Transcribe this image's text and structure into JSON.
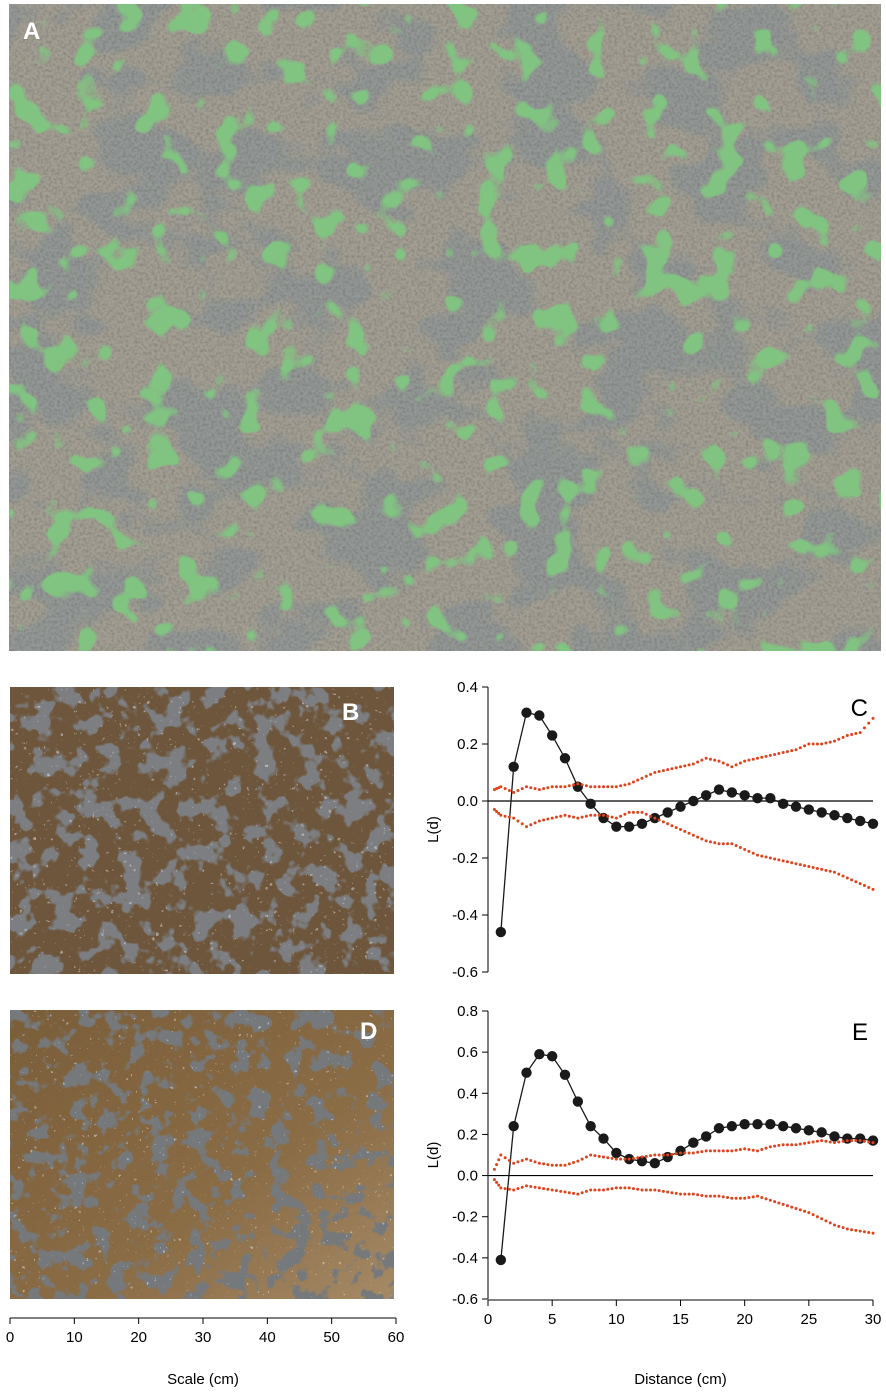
{
  "panels": {
    "a": {
      "letter": "A",
      "description": "aerial photograph of a mussel bed"
    },
    "b": {
      "letter": "B",
      "description": "close-up photograph of mussel clumps"
    },
    "d": {
      "letter": "D",
      "description": "close-up photograph of mussel clumps"
    }
  },
  "scale_axis": {
    "label": "Scale (cm)",
    "range": [
      0,
      60
    ],
    "ticks": [
      "0",
      "10",
      "20",
      "30",
      "40",
      "50",
      "60"
    ]
  },
  "colors": {
    "observed": "#1a1a1a",
    "envelope": "#e0421a",
    "axis": "#000000"
  },
  "chart_data": [
    {
      "type": "line",
      "panel_label": "C",
      "xlabel": "",
      "ylabel": "L(d)",
      "xlim": [
        0,
        30
      ],
      "ylim": [
        -0.6,
        0.4
      ],
      "yticks": [
        -0.6,
        -0.4,
        -0.2,
        0.0,
        0.2,
        0.4
      ],
      "ytick_labels": [
        "-0.6",
        "-0.4",
        "-0.2",
        "0.0",
        "0.2",
        "0.4"
      ],
      "xticks": [
        0,
        5,
        10,
        15,
        20,
        25,
        30
      ],
      "xtick_labels": [],
      "reference_line": 0,
      "series": [
        {
          "style": "observed",
          "x": [
            1,
            2,
            3,
            4,
            5,
            6,
            7,
            8,
            9,
            10,
            11,
            12,
            13,
            14,
            15,
            16,
            17,
            18,
            19,
            20,
            21,
            22,
            23,
            24,
            25,
            26,
            27,
            28,
            29,
            30
          ],
          "y": [
            -0.46,
            0.12,
            0.31,
            0.3,
            0.23,
            0.15,
            0.05,
            -0.01,
            -0.06,
            -0.09,
            -0.09,
            -0.08,
            -0.06,
            -0.04,
            -0.02,
            0.0,
            0.02,
            0.04,
            0.03,
            0.02,
            0.01,
            0.01,
            -0.01,
            -0.02,
            -0.03,
            -0.04,
            -0.05,
            -0.06,
            -0.07,
            -0.08
          ]
        },
        {
          "style": "envelope-upper",
          "x": [
            0.5,
            1,
            2,
            3,
            4,
            5,
            6,
            7,
            8,
            9,
            10,
            11,
            12,
            13,
            14,
            15,
            16,
            17,
            18,
            19,
            20,
            21,
            22,
            23,
            24,
            25,
            26,
            27,
            28,
            29,
            30
          ],
          "y": [
            0.04,
            0.05,
            0.03,
            0.05,
            0.04,
            0.05,
            0.05,
            0.06,
            0.05,
            0.05,
            0.05,
            0.06,
            0.08,
            0.1,
            0.11,
            0.12,
            0.13,
            0.15,
            0.14,
            0.12,
            0.14,
            0.15,
            0.16,
            0.17,
            0.18,
            0.2,
            0.2,
            0.21,
            0.23,
            0.24,
            0.29
          ]
        },
        {
          "style": "envelope-lower",
          "x": [
            0.5,
            1,
            2,
            3,
            4,
            5,
            6,
            7,
            8,
            9,
            10,
            11,
            12,
            13,
            14,
            15,
            16,
            17,
            18,
            19,
            20,
            21,
            22,
            23,
            24,
            25,
            26,
            27,
            28,
            29,
            30
          ],
          "y": [
            -0.03,
            -0.05,
            -0.06,
            -0.09,
            -0.07,
            -0.06,
            -0.05,
            -0.06,
            -0.05,
            -0.05,
            -0.06,
            -0.04,
            -0.04,
            -0.06,
            -0.08,
            -0.1,
            -0.12,
            -0.14,
            -0.15,
            -0.15,
            -0.17,
            -0.19,
            -0.2,
            -0.21,
            -0.22,
            -0.23,
            -0.24,
            -0.25,
            -0.27,
            -0.29,
            -0.31
          ]
        }
      ]
    },
    {
      "type": "line",
      "panel_label": "E",
      "xlabel": "Distance (cm)",
      "ylabel": "L(d)",
      "xlim": [
        0,
        30
      ],
      "ylim": [
        -0.6,
        0.8
      ],
      "yticks": [
        -0.6,
        -0.4,
        -0.2,
        0.0,
        0.2,
        0.4,
        0.6,
        0.8
      ],
      "ytick_labels": [
        "-0.6",
        "-0.4",
        "-0.2",
        "0.0",
        "0.2",
        "0.4",
        "0.6",
        "0.8"
      ],
      "xticks": [
        0,
        5,
        10,
        15,
        20,
        25,
        30
      ],
      "xtick_labels": [
        "0",
        "5",
        "10",
        "15",
        "20",
        "25",
        "30"
      ],
      "reference_line": 0,
      "series": [
        {
          "style": "observed",
          "x": [
            1,
            2,
            3,
            4,
            5,
            6,
            7,
            8,
            9,
            10,
            11,
            12,
            13,
            14,
            15,
            16,
            17,
            18,
            19,
            20,
            21,
            22,
            23,
            24,
            25,
            26,
            27,
            28,
            29,
            30
          ],
          "y": [
            -0.41,
            0.24,
            0.5,
            0.59,
            0.58,
            0.49,
            0.36,
            0.24,
            0.18,
            0.11,
            0.08,
            0.07,
            0.06,
            0.09,
            0.12,
            0.16,
            0.19,
            0.23,
            0.24,
            0.25,
            0.25,
            0.25,
            0.24,
            0.23,
            0.22,
            0.21,
            0.19,
            0.18,
            0.18,
            0.17
          ]
        },
        {
          "style": "envelope-upper",
          "x": [
            0.5,
            1,
            2,
            3,
            4,
            5,
            6,
            7,
            8,
            9,
            10,
            11,
            12,
            13,
            14,
            15,
            16,
            17,
            18,
            19,
            20,
            21,
            22,
            23,
            24,
            25,
            26,
            27,
            28,
            29,
            30
          ],
          "y": [
            0.03,
            0.1,
            0.06,
            0.08,
            0.06,
            0.05,
            0.05,
            0.07,
            0.1,
            0.09,
            0.08,
            0.08,
            0.09,
            0.1,
            0.1,
            0.11,
            0.11,
            0.12,
            0.12,
            0.12,
            0.13,
            0.12,
            0.14,
            0.15,
            0.15,
            0.16,
            0.17,
            0.16,
            0.17,
            0.17,
            0.16
          ]
        },
        {
          "style": "envelope-lower",
          "x": [
            0.5,
            1,
            2,
            3,
            4,
            5,
            6,
            7,
            8,
            9,
            10,
            11,
            12,
            13,
            14,
            15,
            16,
            17,
            18,
            19,
            20,
            21,
            22,
            23,
            24,
            25,
            26,
            27,
            28,
            29,
            30
          ],
          "y": [
            -0.02,
            -0.06,
            -0.07,
            -0.05,
            -0.06,
            -0.07,
            -0.08,
            -0.09,
            -0.07,
            -0.07,
            -0.06,
            -0.06,
            -0.07,
            -0.07,
            -0.08,
            -0.09,
            -0.09,
            -0.1,
            -0.1,
            -0.11,
            -0.11,
            -0.1,
            -0.12,
            -0.14,
            -0.16,
            -0.18,
            -0.21,
            -0.24,
            -0.26,
            -0.27,
            -0.28
          ]
        }
      ]
    }
  ]
}
